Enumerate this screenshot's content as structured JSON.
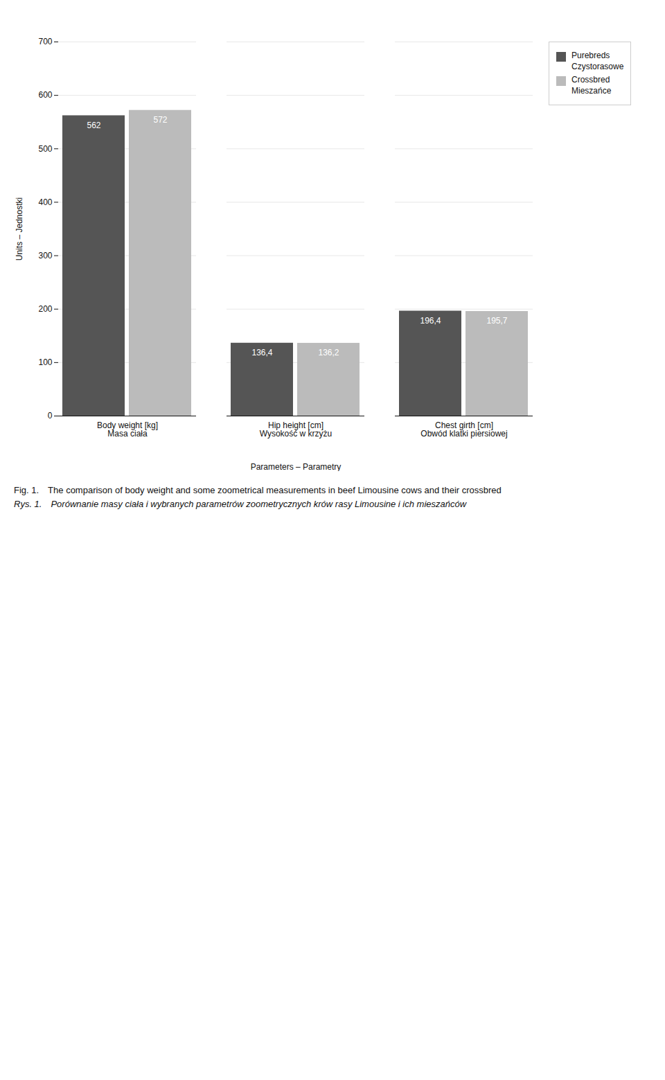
{
  "chart_data": {
    "type": "bar",
    "title": "Fig. 1. The comparison of body weight and some zoometrical measurements in beef Limousine cows and their crossbred",
    "subtitle": "Rys. 1. Porównanie masy ciała i wybranych parametrów zoometrycznych krów rasy Limousine i ich mieszańców",
    "categories": [
      "Body weight [kg]\nMasa ciała",
      "Hip height [cm]\nWysokość w krzyżu",
      "Chest girth [cm]\nObwód klatki piersiowej"
    ],
    "xlabel": "Parameters – Parametry",
    "ylabel": "Units – Jednostki",
    "series": [
      {
        "name": "Purebreds\nCzystorasowe",
        "color": "#555555",
        "values": [
          562,
          136.4,
          196.4
        ],
        "value_labels": [
          "562",
          "136,4",
          "196,4"
        ]
      },
      {
        "name": "Crossbred\nMieszańce",
        "color": "#bbbbbb",
        "values": [
          572,
          136.2,
          195.7
        ],
        "value_labels": [
          "572",
          "136,2",
          "195,7"
        ]
      }
    ],
    "ylim": [
      0,
      700
    ],
    "yticks": [
      0,
      100,
      200,
      300,
      400,
      500,
      600,
      700
    ],
    "grid": true,
    "legend": "right",
    "data_labels": true
  }
}
